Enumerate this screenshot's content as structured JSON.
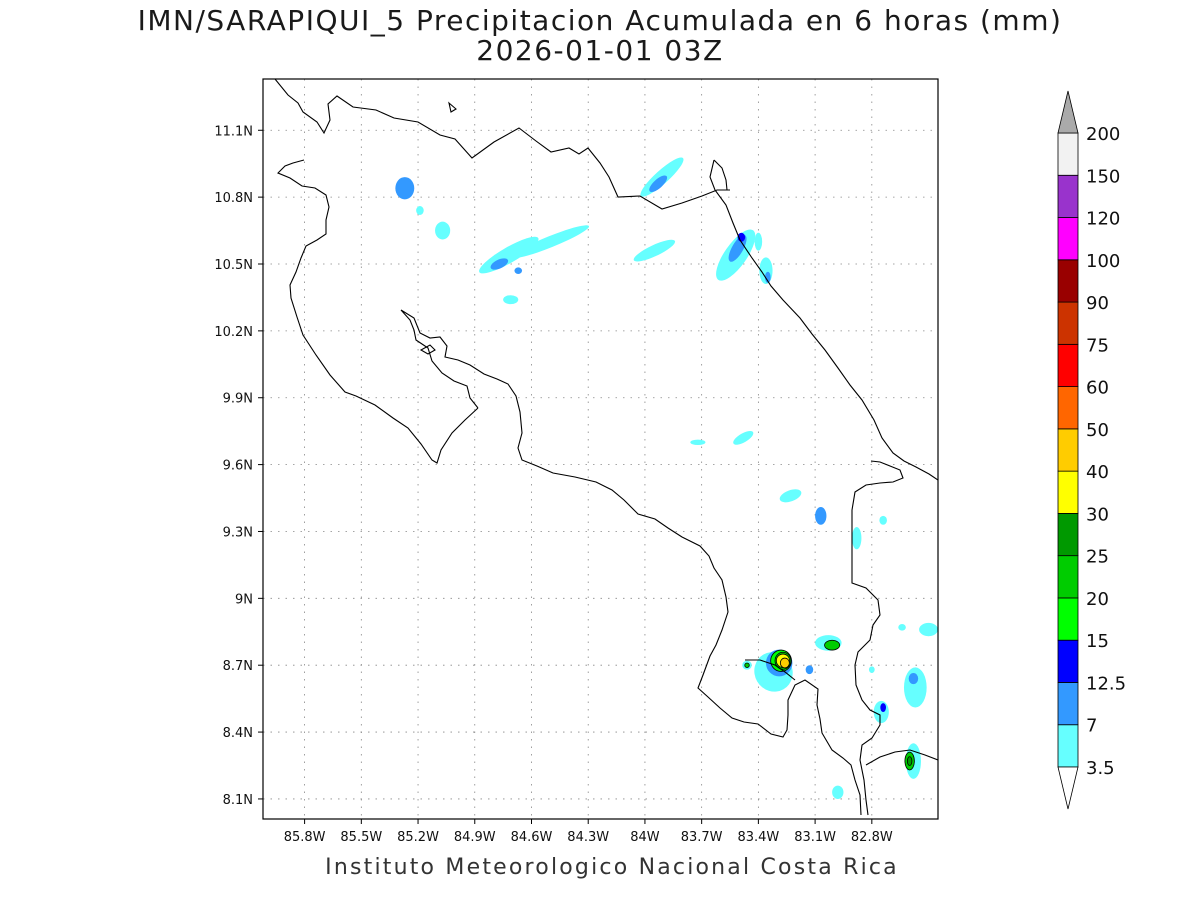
{
  "title": {
    "line1": "IMN/SARAPIQUI_5 Precipitacion Acumulada en 6 horas (mm)",
    "line2": "2026-01-01 03Z"
  },
  "credit": "Instituto Meteorologico Nacional Costa Rica",
  "map": {
    "lon_range": [
      -86.02,
      -82.45
    ],
    "lat_range": [
      8.01,
      11.33
    ],
    "lon_ticks": [
      {
        "value": -85.8,
        "label": "85.8W"
      },
      {
        "value": -85.5,
        "label": "85.5W"
      },
      {
        "value": -85.2,
        "label": "85.2W"
      },
      {
        "value": -84.9,
        "label": "84.9W"
      },
      {
        "value": -84.6,
        "label": "84.6W"
      },
      {
        "value": -84.3,
        "label": "84.3W"
      },
      {
        "value": -84.0,
        "label": "84W"
      },
      {
        "value": -83.7,
        "label": "83.7W"
      },
      {
        "value": -83.4,
        "label": "83.4W"
      },
      {
        "value": -83.1,
        "label": "83.1W"
      },
      {
        "value": -82.8,
        "label": "82.8W"
      }
    ],
    "lat_ticks": [
      {
        "value": 8.1,
        "label": "8.1N"
      },
      {
        "value": 8.4,
        "label": "8.4N"
      },
      {
        "value": 8.7,
        "label": "8.7N"
      },
      {
        "value": 9.0,
        "label": "9N"
      },
      {
        "value": 9.3,
        "label": "9.3N"
      },
      {
        "value": 9.6,
        "label": "9.6N"
      },
      {
        "value": 9.9,
        "label": "9.9N"
      },
      {
        "value": 10.2,
        "label": "10.2N"
      },
      {
        "value": 10.5,
        "label": "10.5N"
      },
      {
        "value": 10.8,
        "label": "10.8N"
      },
      {
        "value": 11.1,
        "label": "11.1N"
      }
    ],
    "grid": "dotted"
  },
  "colorbar": {
    "levels": [
      "3.5",
      "7",
      "12.5",
      "15",
      "20",
      "25",
      "30",
      "40",
      "50",
      "60",
      "75",
      "90",
      "100",
      "120",
      "150",
      "200"
    ],
    "colors": [
      "#ffffff",
      "#66ffff",
      "#3399ff",
      "#0000ff",
      "#00ff00",
      "#00cc00",
      "#009900",
      "#ffff00",
      "#ffcc00",
      "#ff6600",
      "#ff0000",
      "#cc3300",
      "#990000",
      "#ff00ff",
      "#9933cc",
      "#f2f2f2",
      "#aaaaaa"
    ]
  },
  "precip_cells": [
    {
      "lon": -85.27,
      "lat": 10.84,
      "rx": 0.05,
      "ry": 0.05,
      "angle": 0,
      "level": 2
    },
    {
      "lon": -85.19,
      "lat": 10.74,
      "rx": 0.02,
      "ry": 0.02,
      "angle": 0,
      "level": 1
    },
    {
      "lon": -85.07,
      "lat": 10.65,
      "rx": 0.04,
      "ry": 0.04,
      "angle": 0,
      "level": 1
    },
    {
      "lon": -84.72,
      "lat": 10.54,
      "rx": 0.18,
      "ry": 0.035,
      "angle": -30,
      "level": 1
    },
    {
      "lon": -84.5,
      "lat": 10.6,
      "rx": 0.22,
      "ry": 0.025,
      "angle": -22,
      "level": 1
    },
    {
      "lon": -84.77,
      "lat": 10.5,
      "rx": 0.05,
      "ry": 0.02,
      "angle": -25,
      "level": 2
    },
    {
      "lon": -84.67,
      "lat": 10.47,
      "rx": 0.02,
      "ry": 0.015,
      "angle": 0,
      "level": 2
    },
    {
      "lon": -84.71,
      "lat": 10.34,
      "rx": 0.04,
      "ry": 0.02,
      "angle": 0,
      "level": 1
    },
    {
      "lon": -83.91,
      "lat": 10.89,
      "rx": 0.15,
      "ry": 0.03,
      "angle": -42,
      "level": 1
    },
    {
      "lon": -83.93,
      "lat": 10.86,
      "rx": 0.06,
      "ry": 0.02,
      "angle": -42,
      "level": 2
    },
    {
      "lon": -83.95,
      "lat": 10.56,
      "rx": 0.12,
      "ry": 0.025,
      "angle": -25,
      "level": 1
    },
    {
      "lon": -83.52,
      "lat": 10.54,
      "rx": 0.16,
      "ry": 0.05,
      "angle": -55,
      "level": 1
    },
    {
      "lon": -83.51,
      "lat": 10.57,
      "rx": 0.08,
      "ry": 0.025,
      "angle": -60,
      "level": 2
    },
    {
      "lon": -83.49,
      "lat": 10.62,
      "rx": 0.02,
      "ry": 0.02,
      "angle": 0,
      "level": 3
    },
    {
      "lon": -83.36,
      "lat": 10.47,
      "rx": 0.035,
      "ry": 0.06,
      "angle": 0,
      "level": 1
    },
    {
      "lon": -83.35,
      "lat": 10.44,
      "rx": 0.015,
      "ry": 0.025,
      "angle": 0,
      "level": 2
    },
    {
      "lon": -83.4,
      "lat": 10.6,
      "rx": 0.02,
      "ry": 0.04,
      "angle": 0,
      "level": 1
    },
    {
      "lon": -83.48,
      "lat": 9.72,
      "rx": 0.06,
      "ry": 0.02,
      "angle": -30,
      "level": 1
    },
    {
      "lon": -83.72,
      "lat": 9.7,
      "rx": 0.04,
      "ry": 0.012,
      "angle": 0,
      "level": 1
    },
    {
      "lon": -83.23,
      "lat": 9.46,
      "rx": 0.06,
      "ry": 0.025,
      "angle": -20,
      "level": 1
    },
    {
      "lon": -83.07,
      "lat": 9.37,
      "rx": 0.03,
      "ry": 0.04,
      "angle": 0,
      "level": 2
    },
    {
      "lon": -82.88,
      "lat": 9.27,
      "rx": 0.025,
      "ry": 0.05,
      "angle": 0,
      "level": 1
    },
    {
      "lon": -82.74,
      "lat": 9.35,
      "rx": 0.02,
      "ry": 0.02,
      "angle": 0,
      "level": 1
    },
    {
      "lon": -82.5,
      "lat": 8.86,
      "rx": 0.05,
      "ry": 0.03,
      "angle": 0,
      "level": 1
    },
    {
      "lon": -82.64,
      "lat": 8.87,
      "rx": 0.02,
      "ry": 0.015,
      "angle": 0,
      "level": 1
    },
    {
      "lon": -83.32,
      "lat": 8.67,
      "rx": 0.1,
      "ry": 0.09,
      "angle": -30,
      "level": 1
    },
    {
      "lon": -83.29,
      "lat": 8.71,
      "rx": 0.07,
      "ry": 0.06,
      "angle": 0,
      "level": 2
    },
    {
      "lon": -83.28,
      "lat": 8.72,
      "rx": 0.055,
      "ry": 0.048,
      "angle": 0,
      "level": 4
    },
    {
      "lon": -83.27,
      "lat": 8.72,
      "rx": 0.042,
      "ry": 0.038,
      "angle": 0,
      "level": 5
    },
    {
      "lon": -83.27,
      "lat": 8.72,
      "rx": 0.035,
      "ry": 0.03,
      "angle": 0,
      "level": 7
    },
    {
      "lon": -83.26,
      "lat": 8.71,
      "rx": 0.024,
      "ry": 0.022,
      "angle": 0,
      "level": 8
    },
    {
      "lon": -83.46,
      "lat": 8.7,
      "rx": 0.025,
      "ry": 0.02,
      "angle": 0,
      "level": 1
    },
    {
      "lon": -83.46,
      "lat": 8.7,
      "rx": 0.012,
      "ry": 0.01,
      "angle": 0,
      "level": 5
    },
    {
      "lon": -83.03,
      "lat": 8.8,
      "rx": 0.07,
      "ry": 0.035,
      "angle": 0,
      "level": 1
    },
    {
      "lon": -83.01,
      "lat": 8.79,
      "rx": 0.04,
      "ry": 0.022,
      "angle": 0,
      "level": 5
    },
    {
      "lon": -83.13,
      "lat": 8.68,
      "rx": 0.02,
      "ry": 0.02,
      "angle": 0,
      "level": 2
    },
    {
      "lon": -82.57,
      "lat": 8.6,
      "rx": 0.06,
      "ry": 0.09,
      "angle": 0,
      "level": 1
    },
    {
      "lon": -82.58,
      "lat": 8.64,
      "rx": 0.025,
      "ry": 0.025,
      "angle": 0,
      "level": 2
    },
    {
      "lon": -82.75,
      "lat": 8.49,
      "rx": 0.04,
      "ry": 0.05,
      "angle": 0,
      "level": 1
    },
    {
      "lon": -82.74,
      "lat": 8.51,
      "rx": 0.015,
      "ry": 0.02,
      "angle": 0,
      "level": 3
    },
    {
      "lon": -82.58,
      "lat": 8.27,
      "rx": 0.04,
      "ry": 0.08,
      "angle": 0,
      "level": 1
    },
    {
      "lon": -82.6,
      "lat": 8.27,
      "rx": 0.025,
      "ry": 0.04,
      "angle": 0,
      "level": 5
    },
    {
      "lon": -82.6,
      "lat": 8.27,
      "rx": 0.012,
      "ry": 0.02,
      "angle": 0,
      "level": 6
    },
    {
      "lon": -82.98,
      "lat": 8.13,
      "rx": 0.03,
      "ry": 0.03,
      "angle": 0,
      "level": 1
    },
    {
      "lon": -82.8,
      "lat": 8.68,
      "rx": 0.015,
      "ry": 0.015,
      "angle": 0,
      "level": 1
    }
  ]
}
